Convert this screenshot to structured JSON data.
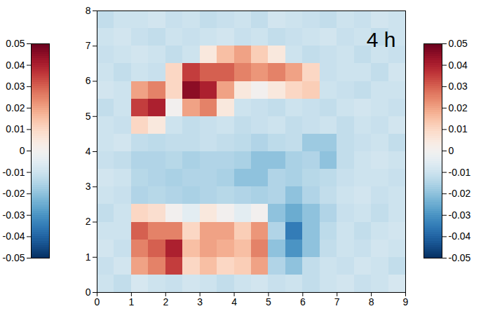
{
  "chart_data": {
    "type": "heatmap",
    "annotation": "4 h",
    "xlim": [
      0,
      9
    ],
    "xticks": [
      0,
      1,
      2,
      3,
      4,
      5,
      6,
      7,
      8,
      9
    ],
    "ylim": [
      0,
      8
    ],
    "yticks": [
      0,
      1,
      2,
      3,
      4,
      5,
      6,
      7,
      8
    ],
    "x_edges": [
      0,
      0.5,
      1,
      1.5,
      2,
      2.5,
      3,
      3.5,
      4,
      4.5,
      5,
      5.5,
      6,
      6.5,
      7,
      7.5,
      8,
      8.5,
      9
    ],
    "y_edges": [
      0,
      0.5,
      1,
      1.5,
      2,
      2.5,
      3,
      3.5,
      4,
      4.5,
      5,
      5.5,
      6,
      6.5,
      7,
      7.5,
      8
    ],
    "cells": [
      [
        -0.01,
        -0.012,
        -0.008,
        -0.01,
        -0.011,
        -0.009,
        -0.01,
        -0.012,
        -0.01,
        -0.009,
        -0.011,
        -0.01,
        -0.012,
        -0.01,
        -0.009,
        -0.011,
        -0.01,
        -0.008
      ],
      [
        -0.011,
        -0.009,
        0.02,
        0.025,
        0.035,
        0.01,
        0.015,
        0.01,
        0.012,
        0.02,
        -0.015,
        -0.02,
        -0.012,
        -0.01,
        -0.011,
        -0.009,
        -0.01,
        -0.012
      ],
      [
        -0.009,
        -0.011,
        0.025,
        0.03,
        0.04,
        0.015,
        0.02,
        0.018,
        0.015,
        0.025,
        -0.02,
        -0.03,
        -0.02,
        -0.012,
        -0.01,
        -0.011,
        -0.009,
        -0.01
      ],
      [
        -0.01,
        -0.01,
        0.03,
        0.025,
        0.025,
        0.01,
        0.02,
        0.02,
        0.012,
        0.022,
        -0.015,
        -0.035,
        -0.02,
        -0.013,
        -0.01,
        -0.012,
        -0.01,
        -0.009
      ],
      [
        -0.012,
        -0.01,
        0.01,
        0.008,
        0.0,
        -0.005,
        0.005,
        0.0,
        -0.005,
        0.0,
        -0.02,
        -0.025,
        -0.02,
        -0.015,
        -0.011,
        -0.01,
        -0.012,
        -0.01
      ],
      [
        -0.01,
        -0.011,
        -0.015,
        -0.014,
        -0.015,
        -0.016,
        -0.015,
        -0.014,
        -0.015,
        -0.016,
        -0.015,
        -0.02,
        -0.015,
        -0.012,
        -0.01,
        -0.009,
        -0.011,
        -0.01
      ],
      [
        -0.009,
        -0.01,
        -0.014,
        -0.015,
        -0.016,
        -0.015,
        -0.015,
        -0.016,
        -0.02,
        -0.02,
        -0.015,
        -0.016,
        -0.014,
        -0.013,
        -0.011,
        -0.01,
        -0.01,
        -0.011
      ],
      [
        -0.011,
        -0.012,
        -0.015,
        -0.015,
        -0.014,
        -0.016,
        -0.015,
        -0.015,
        -0.016,
        -0.02,
        -0.02,
        -0.016,
        -0.015,
        -0.02,
        -0.012,
        -0.01,
        -0.009,
        -0.01
      ],
      [
        -0.01,
        -0.009,
        -0.012,
        -0.013,
        -0.012,
        -0.012,
        -0.011,
        -0.012,
        -0.013,
        -0.015,
        -0.013,
        -0.012,
        -0.018,
        -0.018,
        -0.012,
        -0.011,
        -0.01,
        -0.012
      ],
      [
        -0.01,
        -0.011,
        0.01,
        0.005,
        -0.01,
        -0.012,
        -0.011,
        -0.01,
        -0.012,
        -0.011,
        -0.01,
        -0.012,
        -0.011,
        -0.01,
        -0.012,
        -0.01,
        -0.011,
        -0.009
      ],
      [
        -0.012,
        -0.01,
        0.035,
        0.04,
        0.0,
        0.02,
        0.025,
        0.005,
        -0.01,
        -0.011,
        -0.012,
        -0.01,
        -0.011,
        -0.012,
        -0.01,
        -0.009,
        -0.01,
        -0.011
      ],
      [
        -0.009,
        -0.01,
        0.02,
        0.025,
        0.01,
        0.045,
        0.04,
        0.02,
        0.005,
        0.0,
        0.005,
        0.01,
        0.012,
        -0.01,
        -0.011,
        -0.012,
        -0.01,
        -0.01
      ],
      [
        -0.01,
        -0.012,
        -0.01,
        -0.011,
        0.01,
        0.035,
        0.03,
        0.03,
        0.025,
        0.022,
        0.025,
        0.02,
        0.01,
        -0.011,
        -0.01,
        -0.01,
        -0.012,
        -0.009
      ],
      [
        -0.011,
        -0.01,
        -0.009,
        -0.01,
        -0.012,
        -0.01,
        0.005,
        0.015,
        0.02,
        0.012,
        0.005,
        -0.01,
        -0.012,
        -0.011,
        -0.01,
        -0.012,
        -0.01,
        -0.011
      ],
      [
        -0.01,
        -0.009,
        -0.011,
        -0.012,
        -0.01,
        -0.011,
        -0.01,
        -0.009,
        -0.011,
        -0.01,
        -0.012,
        -0.011,
        -0.01,
        -0.009,
        -0.011,
        -0.01,
        -0.012,
        -0.01
      ],
      [
        -0.012,
        -0.01,
        -0.01,
        -0.009,
        -0.011,
        -0.01,
        -0.012,
        -0.011,
        -0.01,
        -0.012,
        -0.009,
        -0.01,
        -0.011,
        -0.012,
        -0.01,
        -0.011,
        -0.009,
        -0.01
      ]
    ],
    "colorbar": {
      "range": [
        -0.05,
        0.05
      ],
      "ticks": [
        -0.05,
        -0.04,
        -0.03,
        -0.02,
        -0.01,
        0,
        0.01,
        0.02,
        0.03,
        0.04,
        0.05
      ]
    }
  }
}
